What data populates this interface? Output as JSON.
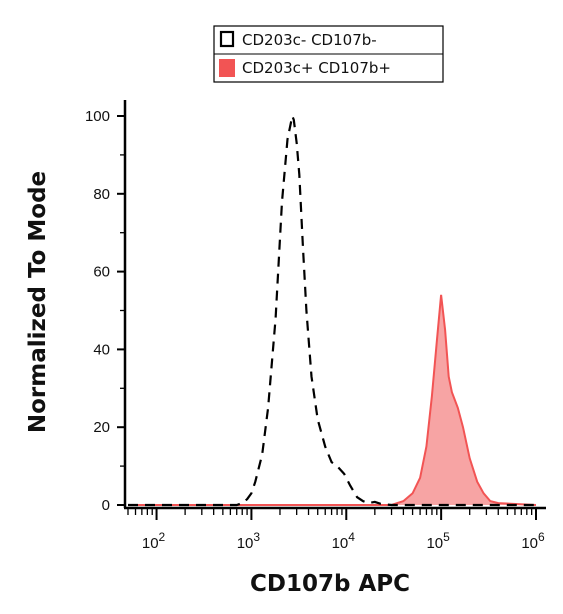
{
  "chart_data": {
    "type": "area",
    "title": "",
    "xlabel": "CD107b APC",
    "ylabel": "Normalized To Mode",
    "x_scale": "log",
    "xlim": [
      50,
      1000000
    ],
    "ylim": [
      0,
      100
    ],
    "x_ticks": [
      {
        "value": 100,
        "base": "10",
        "exp": "2"
      },
      {
        "value": 1000,
        "base": "10",
        "exp": "3"
      },
      {
        "value": 10000,
        "base": "10",
        "exp": "4"
      },
      {
        "value": 100000,
        "base": "10",
        "exp": "5"
      },
      {
        "value": 1000000,
        "base": "10",
        "exp": "6"
      }
    ],
    "y_ticks": [
      0,
      20,
      40,
      60,
      80,
      100
    ],
    "legend_position": "top-center",
    "series": [
      {
        "name": "CD203c- CD107b-",
        "style": "dashed-outline",
        "color": "#000000",
        "x": [
          50,
          700,
          800,
          900,
          1000,
          1100,
          1300,
          1500,
          1800,
          2100,
          2400,
          2700,
          2800,
          3000,
          3200,
          3500,
          3800,
          4300,
          5000,
          6000,
          7000,
          8000,
          9500,
          11000,
          13000,
          15000,
          17000,
          20000,
          23000,
          27000,
          30000,
          1000000
        ],
        "y": [
          0,
          0,
          0.5,
          1.5,
          3,
          6,
          13,
          25,
          48,
          78,
          94,
          100,
          99,
          93,
          85,
          66,
          50,
          33,
          22,
          15,
          11,
          10,
          8,
          5,
          2,
          1,
          0.5,
          0.8,
          0.3,
          0.1,
          0,
          0
        ]
      },
      {
        "name": "CD203c+ CD107b+",
        "style": "filled",
        "color": "#f25454",
        "fill": "#f7a4a4",
        "x": [
          50,
          30000,
          40000,
          50000,
          60000,
          70000,
          80000,
          90000,
          100000,
          110000,
          120000,
          130000,
          150000,
          170000,
          200000,
          240000,
          280000,
          330000,
          400000,
          1000000
        ],
        "y": [
          0,
          0,
          1,
          3,
          7,
          15,
          28,
          42,
          54,
          45,
          33,
          29,
          25,
          20,
          12,
          6,
          3,
          1,
          0.5,
          0
        ]
      }
    ]
  }
}
